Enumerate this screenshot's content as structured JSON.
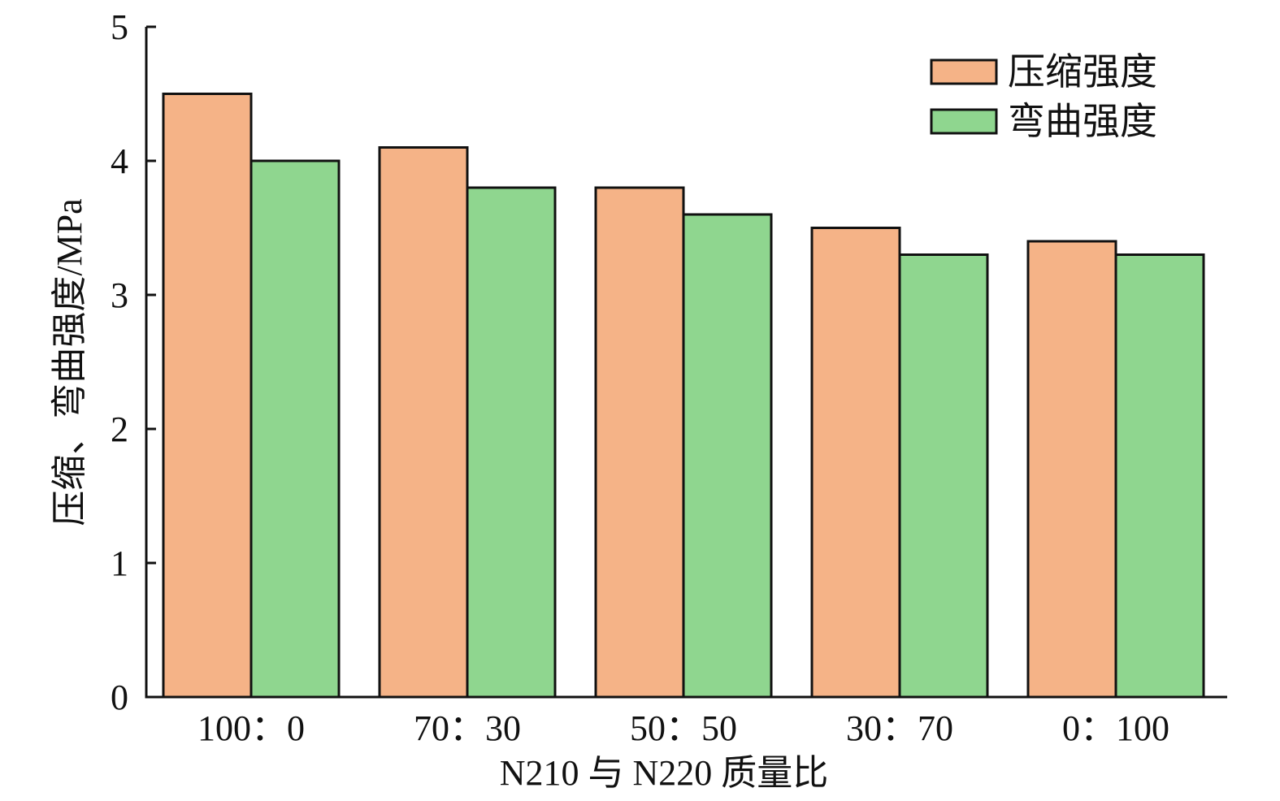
{
  "chart_data": {
    "type": "bar",
    "title": "",
    "xlabel": "N210 与 N220 质量比",
    "ylabel": "压缩、弯曲强度/MPa",
    "categories": [
      "100：0",
      "70：30",
      "50：50",
      "30：70",
      "0：100"
    ],
    "series": [
      {
        "name": "压缩强度",
        "color": "#F5B387",
        "values": [
          4.5,
          4.1,
          3.8,
          3.5,
          3.4
        ]
      },
      {
        "name": "弯曲强度",
        "color": "#8FD68F",
        "values": [
          4.0,
          3.8,
          3.6,
          3.3,
          3.3
        ]
      }
    ],
    "ylim": [
      0,
      5
    ],
    "yticks": [
      0,
      1,
      2,
      3,
      4,
      5
    ],
    "grid": false,
    "legend_position": "top-right"
  }
}
